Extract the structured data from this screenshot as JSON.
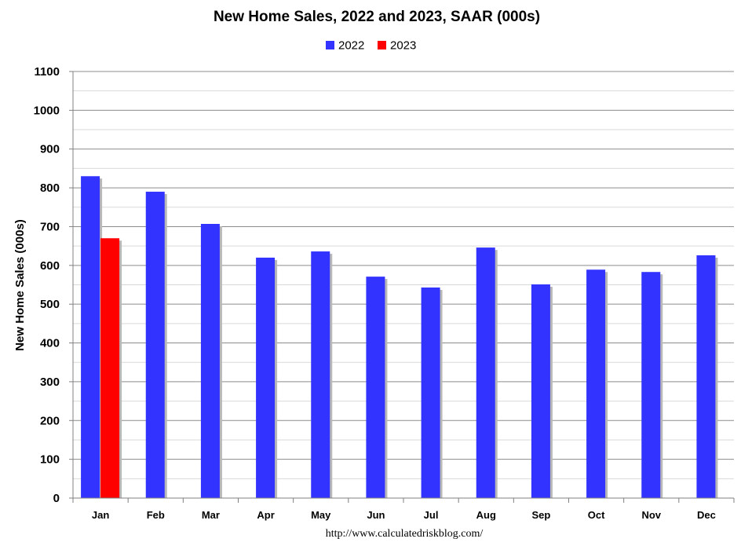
{
  "chart_data": {
    "type": "bar",
    "title": "New Home Sales,  2022 and 2023, SAAR (000s)",
    "ylabel": "New Home Sales (000s)",
    "xlabel": "",
    "categories": [
      "Jan",
      "Feb",
      "Mar",
      "Apr",
      "May",
      "Jun",
      "Jul",
      "Aug",
      "Sep",
      "Oct",
      "Nov",
      "Dec"
    ],
    "series": [
      {
        "name": "2022",
        "color": "#3333ff",
        "values": [
          830,
          790,
          707,
          620,
          636,
          571,
          543,
          646,
          551,
          589,
          583,
          626
        ]
      },
      {
        "name": "2023",
        "color": "#ff0000",
        "values": [
          670,
          null,
          null,
          null,
          null,
          null,
          null,
          null,
          null,
          null,
          null,
          null
        ]
      }
    ],
    "ylim": [
      0,
      1100
    ],
    "yticks": [
      0,
      100,
      200,
      300,
      400,
      500,
      600,
      700,
      800,
      900,
      1000,
      1100
    ],
    "grid": true,
    "minor_grid": true,
    "legend_position": "top-center",
    "source": "http://www.calculatedriskblog.com/"
  }
}
